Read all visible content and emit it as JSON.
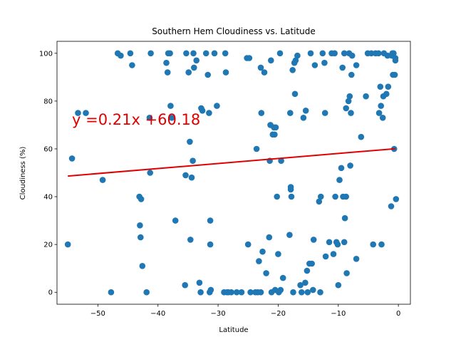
{
  "chart_data": {
    "type": "scatter",
    "title": "Southern Hem Cloudiness vs. Latitude",
    "xlabel": "Latitude",
    "ylabel": "Cloudiness (%)",
    "xlim": [
      -56.8,
      2.0
    ],
    "ylim": [
      -5,
      105
    ],
    "xticks": [
      -50,
      -40,
      -30,
      -20,
      -10,
      0
    ],
    "xtick_labels": [
      "−50",
      "−40",
      "−30",
      "−20",
      "−10",
      "0"
    ],
    "yticks": [
      0,
      20,
      40,
      60,
      80,
      100
    ],
    "ytick_labels": [
      "0",
      "20",
      "40",
      "60",
      "80",
      "100"
    ],
    "grid": false,
    "point_color": "#1f77b4",
    "regression": {
      "equation": "y =0.21x +60.18",
      "slope": 0.21,
      "intercept": 60.18,
      "x_range": [
        -55.0,
        -0.5
      ],
      "color": "#e00000",
      "label_position": "upper-left"
    },
    "points": [
      [
        -55.0,
        20
      ],
      [
        -54.3,
        56
      ],
      [
        -53.3,
        75
      ],
      [
        -52.0,
        75
      ],
      [
        -49.2,
        47
      ],
      [
        -47.8,
        0
      ],
      [
        -46.7,
        100
      ],
      [
        -46.2,
        99
      ],
      [
        -44.6,
        100
      ],
      [
        -44.3,
        95
      ],
      [
        -43.1,
        40
      ],
      [
        -43.0,
        28
      ],
      [
        -42.9,
        23
      ],
      [
        -42.8,
        39
      ],
      [
        -42.6,
        11
      ],
      [
        -41.9,
        0
      ],
      [
        -41.4,
        73
      ],
      [
        -41.3,
        50
      ],
      [
        -41.2,
        100
      ],
      [
        -38.6,
        96
      ],
      [
        -38.4,
        92
      ],
      [
        -38.3,
        100
      ],
      [
        -38.0,
        100
      ],
      [
        -37.9,
        78
      ],
      [
        -37.7,
        73
      ],
      [
        -37.1,
        30
      ],
      [
        -35.5,
        3
      ],
      [
        -35.4,
        49
      ],
      [
        -35.3,
        100
      ],
      [
        -34.9,
        92
      ],
      [
        -34.7,
        63
      ],
      [
        -34.6,
        22
      ],
      [
        -34.4,
        48
      ],
      [
        -34.2,
        55
      ],
      [
        -34.1,
        100
      ],
      [
        -34.0,
        94
      ],
      [
        -33.6,
        97
      ],
      [
        -33.1,
        4
      ],
      [
        -32.9,
        0
      ],
      [
        -32.8,
        77
      ],
      [
        -32.6,
        76
      ],
      [
        -32.0,
        100
      ],
      [
        -31.7,
        91
      ],
      [
        -31.5,
        75
      ],
      [
        -31.4,
        0
      ],
      [
        -31.3,
        30
      ],
      [
        -31.3,
        20
      ],
      [
        -31.2,
        1
      ],
      [
        -30.6,
        100
      ],
      [
        -30.2,
        78
      ],
      [
        -29.0,
        0
      ],
      [
        -28.8,
        100
      ],
      [
        -28.7,
        92
      ],
      [
        -28.5,
        0
      ],
      [
        -28.3,
        0
      ],
      [
        -27.8,
        0
      ],
      [
        -26.9,
        0
      ],
      [
        -26.1,
        0
      ],
      [
        -25.2,
        98
      ],
      [
        -25.0,
        20
      ],
      [
        -24.8,
        98
      ],
      [
        -24.6,
        0
      ],
      [
        -23.8,
        0
      ],
      [
        -23.6,
        60
      ],
      [
        -23.4,
        0
      ],
      [
        -23.2,
        13
      ],
      [
        -22.9,
        0
      ],
      [
        -22.9,
        94
      ],
      [
        -22.8,
        75
      ],
      [
        -22.6,
        17
      ],
      [
        -22.3,
        92
      ],
      [
        -22.0,
        8
      ],
      [
        -21.5,
        23
      ],
      [
        -21.4,
        55
      ],
      [
        -21.3,
        70
      ],
      [
        -21.2,
        97
      ],
      [
        -21.1,
        0
      ],
      [
        -20.9,
        66
      ],
      [
        -20.7,
        69
      ],
      [
        -20.6,
        66
      ],
      [
        -20.5,
        1
      ],
      [
        -20.4,
        69
      ],
      [
        -20.2,
        40
      ],
      [
        -20.0,
        16
      ],
      [
        -19.9,
        0
      ],
      [
        -19.7,
        100
      ],
      [
        -19.6,
        1
      ],
      [
        -19.5,
        55
      ],
      [
        -19.2,
        6
      ],
      [
        -18.1,
        24
      ],
      [
        -18.0,
        75
      ],
      [
        -17.9,
        44
      ],
      [
        -17.9,
        43
      ],
      [
        -17.8,
        40
      ],
      [
        -17.6,
        93
      ],
      [
        -17.5,
        0
      ],
      [
        -17.3,
        96
      ],
      [
        -17.2,
        83
      ],
      [
        -17.1,
        97
      ],
      [
        -16.8,
        99
      ],
      [
        -16.3,
        3
      ],
      [
        -16.1,
        0
      ],
      [
        -15.8,
        73
      ],
      [
        -15.5,
        4
      ],
      [
        -15.4,
        76
      ],
      [
        -15.2,
        9
      ],
      [
        -15.1,
        0
      ],
      [
        -14.8,
        12
      ],
      [
        -14.6,
        100
      ],
      [
        -14.4,
        12
      ],
      [
        -14.2,
        1
      ],
      [
        -14.1,
        22
      ],
      [
        -13.9,
        95
      ],
      [
        -13.2,
        38
      ],
      [
        -13.0,
        0
      ],
      [
        -12.9,
        40
      ],
      [
        -12.6,
        100
      ],
      [
        -12.3,
        96
      ],
      [
        -12.2,
        75
      ],
      [
        -12.1,
        15
      ],
      [
        -11.5,
        21
      ],
      [
        -11.1,
        100
      ],
      [
        -10.8,
        16
      ],
      [
        -10.6,
        100
      ],
      [
        -10.5,
        40
      ],
      [
        -10.3,
        21
      ],
      [
        -10.1,
        20
      ],
      [
        -10.0,
        3
      ],
      [
        -9.8,
        47
      ],
      [
        -9.5,
        52
      ],
      [
        -9.3,
        94
      ],
      [
        -9.2,
        40
      ],
      [
        -9.0,
        21
      ],
      [
        -9.0,
        100
      ],
      [
        -8.9,
        31
      ],
      [
        -8.7,
        77
      ],
      [
        -8.7,
        40
      ],
      [
        -8.6,
        8
      ],
      [
        -8.3,
        80
      ],
      [
        -8.2,
        100
      ],
      [
        -8.1,
        82
      ],
      [
        -8.0,
        53
      ],
      [
        -7.9,
        75
      ],
      [
        -7.8,
        91
      ],
      [
        -7.7,
        99
      ],
      [
        -7.0,
        95
      ],
      [
        -7.0,
        14
      ],
      [
        -6.2,
        65
      ],
      [
        -5.4,
        82
      ],
      [
        -5.1,
        100
      ],
      [
        -4.5,
        100
      ],
      [
        -4.2,
        20
      ],
      [
        -3.8,
        100
      ],
      [
        -3.3,
        100
      ],
      [
        -3.2,
        75
      ],
      [
        -3.0,
        86
      ],
      [
        -2.9,
        78
      ],
      [
        -2.8,
        20
      ],
      [
        -2.6,
        73
      ],
      [
        -2.5,
        82
      ],
      [
        -2.4,
        100
      ],
      [
        -2.0,
        83
      ],
      [
        -1.8,
        99
      ],
      [
        -1.7,
        86
      ],
      [
        -1.2,
        36
      ],
      [
        -1.1,
        99
      ],
      [
        -1.0,
        100
      ],
      [
        -0.9,
        91
      ],
      [
        -0.8,
        100
      ],
      [
        -0.7,
        60
      ],
      [
        -0.6,
        91
      ],
      [
        -0.5,
        98
      ],
      [
        -0.5,
        97
      ],
      [
        -0.4,
        39
      ]
    ]
  }
}
